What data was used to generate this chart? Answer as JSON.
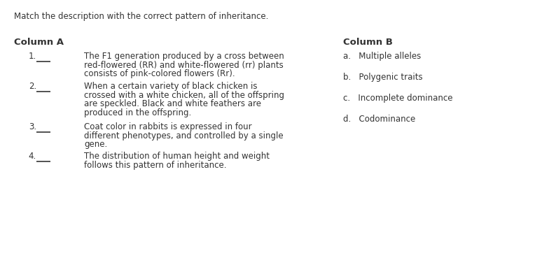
{
  "title": "Match the description with the correct pattern of inheritance.",
  "col_a_header": "Column A",
  "col_b_header": "Column B",
  "col_a_items": [
    {
      "number": "1.",
      "lines": [
        "The F1 generation produced by a cross between",
        "red-flowered (RR) and white-flowered (rr) plants",
        "consists of pink-colored flowers (Rr)."
      ],
      "has_line": true
    },
    {
      "number": "2.",
      "lines": [
        "When a certain variety of black chicken is",
        "crossed with a white chicken, all of the offspring",
        "are speckled. Black and white feathers are",
        "produced in the offspring."
      ],
      "has_line": true
    },
    {
      "number": "3.",
      "lines": [
        "Coat color in rabbits is expressed in four",
        "different phenotypes, and controlled by a single",
        "gene."
      ],
      "has_line": true
    },
    {
      "number": "4.",
      "lines": [
        "The distribution of human height and weight",
        "follows this pattern of inheritance."
      ],
      "has_line": true
    }
  ],
  "col_b_items": [
    "a.   Multiple alleles",
    "b.   Polygenic traits",
    "c.   Incomplete dominance",
    "d.   Codominance"
  ],
  "background_color": "#ffffff",
  "text_color": "#333333",
  "font_size": 8.5,
  "header_font_size": 9.5,
  "title_font_size": 8.5
}
